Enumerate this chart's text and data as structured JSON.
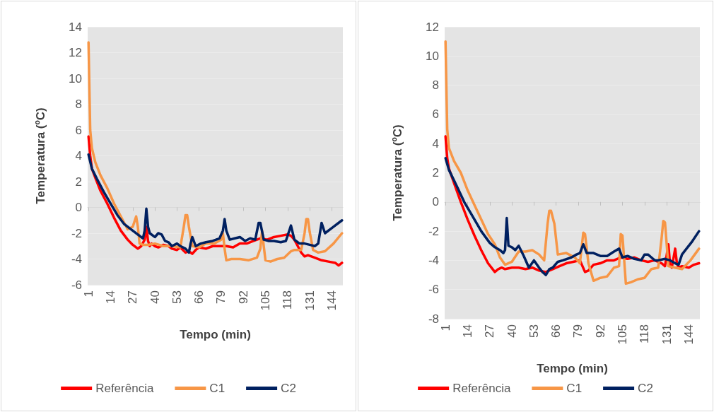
{
  "chart_data": [
    {
      "type": "line",
      "xlabel": "Tempo (min)",
      "ylabel": "Temperatura (ºC)",
      "xlim": [
        0.5,
        150.5
      ],
      "xticks": [
        1,
        14,
        27,
        40,
        53,
        66,
        79,
        92,
        105,
        118,
        131,
        144
      ],
      "ylim": [
        -6,
        14
      ],
      "yticks": [
        -6,
        -4,
        -2,
        0,
        2,
        4,
        6,
        8,
        10,
        12,
        14
      ],
      "grid": "y",
      "legend": "bottom",
      "marker": "none",
      "line_style": "solid",
      "series": [
        {
          "name": "Referência",
          "color": "#ff0000",
          "x": [
            1,
            2,
            3,
            5,
            8,
            12,
            16,
            20,
            24,
            27,
            30,
            32,
            34,
            35,
            36,
            37,
            38,
            40,
            42,
            45,
            48,
            50,
            53,
            55,
            58,
            60,
            62,
            64,
            66,
            70,
            74,
            78,
            82,
            86,
            90,
            94,
            98,
            102,
            106,
            110,
            114,
            118,
            120,
            122,
            124,
            126,
            128,
            130,
            134,
            138,
            142,
            146,
            148,
            150
          ],
          "values": [
            5.5,
            4,
            3,
            2.3,
            1.3,
            0.3,
            -0.8,
            -1.8,
            -2.5,
            -2.9,
            -3.2,
            -3,
            -2.5,
            -1.5,
            -2.6,
            -3,
            -2.8,
            -3,
            -3.1,
            -2.9,
            -3,
            -3.2,
            -3.3,
            -3.1,
            -3.5,
            -3.4,
            -3.6,
            -3.3,
            -3.1,
            -3.2,
            -3,
            -3,
            -3,
            -3.1,
            -2.8,
            -2.8,
            -2.6,
            -2.4,
            -2.5,
            -2.3,
            -2.2,
            -2.1,
            -2.2,
            -2.5,
            -3,
            -3.5,
            -3.8,
            -3.7,
            -3.9,
            -4.1,
            -4.2,
            -4.3,
            -4.5,
            -4.3
          ]
        },
        {
          "name": "C1",
          "color": "#f79646",
          "x": [
            1,
            2,
            3,
            5,
            8,
            12,
            16,
            20,
            24,
            27,
            29,
            30,
            31,
            33,
            36,
            40,
            45,
            50,
            55,
            57,
            58,
            59,
            60,
            62,
            66,
            70,
            75,
            79,
            80,
            81,
            82,
            85,
            90,
            95,
            100,
            102,
            103,
            104,
            105,
            108,
            112,
            116,
            120,
            122,
            126,
            128,
            129,
            130,
            131,
            133,
            136,
            140,
            145,
            150
          ],
          "values": [
            12.8,
            6,
            4.6,
            3.5,
            2.5,
            1.5,
            0.3,
            -0.7,
            -1.7,
            -1.5,
            -0.7,
            -1.5,
            -2.8,
            -2.9,
            -2.9,
            -2.8,
            -3,
            -3,
            -3.1,
            -1.5,
            -0.6,
            -0.6,
            -1.5,
            -3,
            -3.1,
            -2.8,
            -2.8,
            -2.5,
            -2,
            -3.2,
            -4.1,
            -4,
            -4,
            -4.1,
            -3.9,
            -3.2,
            -1.8,
            -3,
            -4.1,
            -4.2,
            -4,
            -3.9,
            -3.4,
            -3.3,
            -3.3,
            -2,
            -0.9,
            -0.9,
            -1.9,
            -3.3,
            -3.5,
            -3.4,
            -2.8,
            -2
          ]
        },
        {
          "name": "C2",
          "color": "#002060",
          "x": [
            1,
            3,
            6,
            10,
            14,
            18,
            22,
            27,
            30,
            33,
            34,
            35,
            36,
            37,
            40,
            42,
            44,
            46,
            48,
            50,
            53,
            55,
            58,
            60,
            61,
            62,
            64,
            67,
            70,
            74,
            78,
            80,
            81,
            82,
            84,
            87,
            90,
            93,
            96,
            99,
            101,
            102,
            104,
            107,
            110,
            114,
            117,
            119,
            120,
            122,
            125,
            128,
            131,
            134,
            136,
            138,
            140,
            145,
            150
          ],
          "values": [
            4.1,
            3,
            2.2,
            1.2,
            0.3,
            -0.6,
            -1.3,
            -1.8,
            -2.1,
            -2.4,
            -1.8,
            -0.1,
            -1.5,
            -2,
            -2.3,
            -2,
            -2.1,
            -2.6,
            -2.7,
            -3,
            -2.8,
            -3,
            -3.2,
            -3.5,
            -2.8,
            -2.3,
            -3,
            -2.8,
            -2.7,
            -2.6,
            -2.4,
            -1.8,
            -0.9,
            -1.8,
            -2.5,
            -2.4,
            -2.3,
            -2.6,
            -2.4,
            -2.5,
            -1.2,
            -1.2,
            -2.5,
            -2.6,
            -2.6,
            -2.7,
            -2.6,
            -1.8,
            -1.4,
            -2.5,
            -2.8,
            -2.8,
            -2.9,
            -3,
            -2.8,
            -1.2,
            -2,
            -1.5,
            -1
          ]
        }
      ]
    },
    {
      "type": "line",
      "xlabel": "Tempo (min)",
      "ylabel": "Temperatura (ºC)",
      "xlim": [
        0.5,
        150.5
      ],
      "xticks": [
        1,
        14,
        27,
        40,
        53,
        66,
        79,
        92,
        105,
        118,
        131,
        144
      ],
      "ylim": [
        -8,
        12
      ],
      "yticks": [
        -8,
        -6,
        -4,
        -2,
        0,
        2,
        4,
        6,
        8,
        10,
        12
      ],
      "grid": "y",
      "legend": "bottom",
      "marker": "none",
      "line_style": "solid",
      "series": [
        {
          "name": "Referência",
          "color": "#ff0000",
          "x": [
            1,
            2,
            3,
            6,
            10,
            14,
            18,
            22,
            26,
            30,
            32,
            34,
            36,
            40,
            44,
            48,
            52,
            56,
            60,
            64,
            68,
            72,
            76,
            80,
            83,
            85,
            88,
            92,
            96,
            100,
            104,
            108,
            112,
            116,
            120,
            124,
            128,
            130,
            132,
            133,
            134,
            136,
            137,
            138,
            140,
            144,
            147,
            150
          ],
          "values": [
            4.5,
            3,
            2.3,
            1.3,
            0,
            -1.2,
            -2.3,
            -3.3,
            -4.2,
            -4.8,
            -4.6,
            -4.5,
            -4.6,
            -4.5,
            -4.5,
            -4.6,
            -4.5,
            -4.7,
            -4.8,
            -4.6,
            -4.4,
            -4.2,
            -4.1,
            -4,
            -4.8,
            -4.7,
            -4.3,
            -4.2,
            -4,
            -4,
            -3.8,
            -3.9,
            -3.8,
            -4,
            -4.1,
            -4,
            -4.2,
            -4.4,
            -2.9,
            -4.3,
            -4.5,
            -3.2,
            -4.2,
            -4.5,
            -4.4,
            -4.5,
            -4.3,
            -4.2
          ]
        },
        {
          "name": "C1",
          "color": "#f79646",
          "x": [
            1,
            2,
            3,
            6,
            10,
            14,
            18,
            22,
            26,
            30,
            33,
            36,
            40,
            44,
            48,
            52,
            56,
            59,
            61,
            62,
            63,
            65,
            67,
            72,
            77,
            80,
            82,
            83,
            85,
            88,
            92,
            96,
            100,
            103,
            104,
            105,
            107,
            110,
            114,
            118,
            122,
            126,
            128,
            129,
            130,
            132,
            136,
            140,
            145,
            150
          ],
          "values": [
            11,
            5,
            3.7,
            2.8,
            2,
            0.8,
            -0.2,
            -1.2,
            -2.2,
            -2.9,
            -3.8,
            -4.3,
            -4.1,
            -3.4,
            -3.4,
            -3.3,
            -3.6,
            -4,
            -1.5,
            -0.6,
            -0.6,
            -1.5,
            -3.6,
            -3.5,
            -3.8,
            -4.2,
            -2.1,
            -2.2,
            -4.2,
            -5.4,
            -5.2,
            -5.1,
            -4.5,
            -4.4,
            -2.2,
            -2.3,
            -5.6,
            -5.5,
            -5.3,
            -5.2,
            -4.6,
            -4.5,
            -2.5,
            -1.3,
            -1.4,
            -4.4,
            -4.5,
            -4.6,
            -4,
            -3.2
          ]
        },
        {
          "name": "C2",
          "color": "#002060",
          "x": [
            1,
            3,
            8,
            12,
            17,
            22,
            27,
            30,
            33,
            35,
            36,
            37,
            38,
            40,
            42,
            44,
            47,
            50,
            53,
            56,
            58,
            60,
            62,
            64,
            67,
            70,
            75,
            78,
            80,
            82,
            84,
            88,
            92,
            96,
            100,
            103,
            105,
            108,
            112,
            116,
            118,
            120,
            122,
            124,
            126,
            130,
            133,
            136,
            138,
            140,
            142,
            146,
            150
          ],
          "values": [
            3,
            2.2,
            1,
            0,
            -1,
            -2,
            -2.8,
            -3.1,
            -3.3,
            -3.5,
            -3.3,
            -1.1,
            -3,
            -3.1,
            -3.3,
            -3,
            -3.7,
            -4.5,
            -4,
            -4.5,
            -4.8,
            -5,
            -4.6,
            -4.5,
            -4.1,
            -4,
            -3.8,
            -3.6,
            -3.5,
            -2.9,
            -3.5,
            -3.5,
            -3.7,
            -3.7,
            -3.4,
            -3.2,
            -3.8,
            -3.7,
            -3.9,
            -4,
            -3.6,
            -3.6,
            -3.8,
            -4,
            -4,
            -3.9,
            -4,
            -4.2,
            -4.3,
            -3.6,
            -3.3,
            -2.7,
            -2
          ]
        }
      ]
    }
  ]
}
